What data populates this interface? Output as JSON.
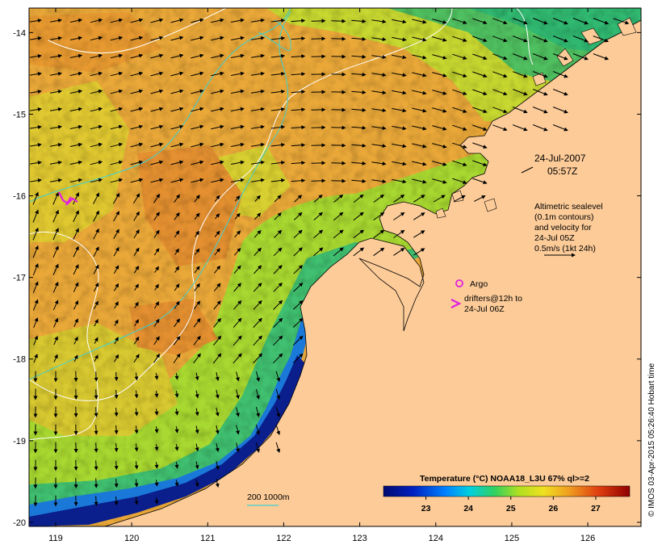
{
  "map": {
    "lon_ticks": [
      "119",
      "120",
      "121",
      "122",
      "123",
      "124",
      "125",
      "126"
    ],
    "lat_ticks": [
      "-14",
      "-15",
      "-16",
      "-17",
      "-18",
      "-19",
      "-20"
    ],
    "lon_range": [
      118.65,
      126.7
    ],
    "lat_range": [
      -20.05,
      -13.7
    ],
    "timestamp_date": "24-Jul-2007",
    "timestamp_time": "05:57Z",
    "legend_lines": [
      "Altimetric sealevel",
      "(0.1m contours)",
      "and velocity for",
      "24-Jul 05Z",
      "0.5m/s (1kt 24h)"
    ],
    "argo_label": "Argo",
    "drifters_lines": [
      "drifters@12h to",
      "24-Jul 06Z"
    ],
    "bathy_label": "200  1000m",
    "colorbar": {
      "title": "Temperature (°C) NOAA18_L3U 67% ql>=2",
      "tick_labels": [
        "23",
        "24",
        "25",
        "26",
        "27"
      ],
      "tick_values": [
        23,
        24,
        25,
        26,
        27
      ],
      "range": [
        22.0,
        27.8
      ]
    },
    "credit": "© IMOS 03-Apr-2015 05:26:40 Hobart time",
    "colors": {
      "land": "#fccb98",
      "warm": "#f0a830",
      "mid": "#dcd820",
      "cool": "#22c0b0",
      "deep": "#0a1e8c",
      "argo": "#e020e0",
      "contour": "#ffffff",
      "bathy": "#40d0d0"
    }
  }
}
